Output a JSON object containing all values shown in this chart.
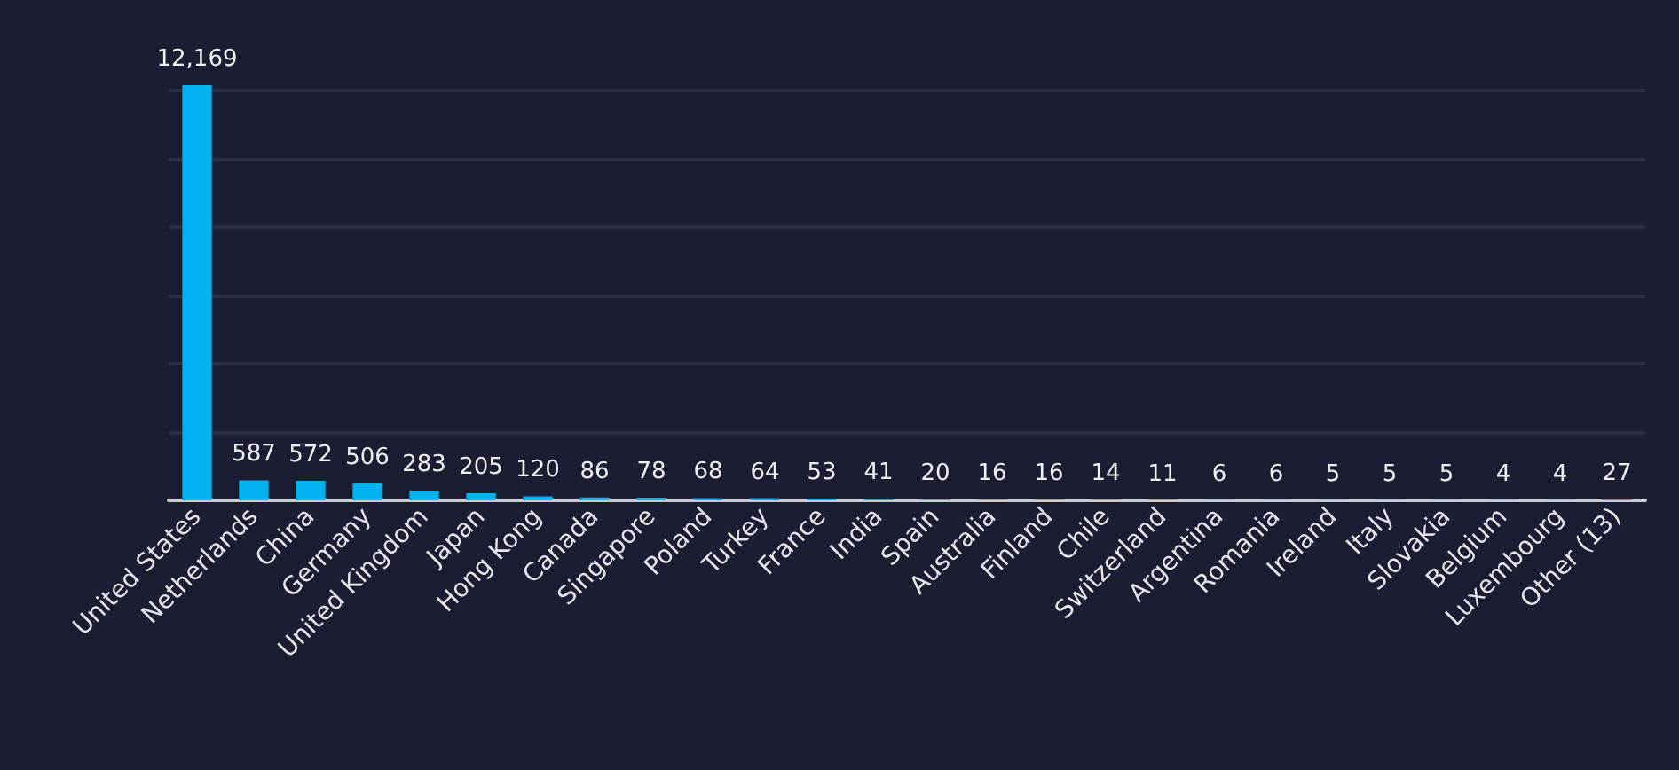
{
  "chart_data": {
    "type": "bar",
    "categories": [
      "United States",
      "Netherlands",
      "China",
      "Germany",
      "United Kingdom",
      "Japan",
      "Hong Kong",
      "Canada",
      "Singapore",
      "Poland",
      "Turkey",
      "France",
      "India",
      "Spain",
      "Australia",
      "Finland",
      "Chile",
      "Switzerland",
      "Argentina",
      "Romania",
      "Ireland",
      "Italy",
      "Slovakia",
      "Belgium",
      "Luxembourg",
      "Other (13)"
    ],
    "values": [
      12169,
      587,
      572,
      506,
      283,
      205,
      120,
      86,
      78,
      68,
      64,
      53,
      41,
      20,
      16,
      16,
      14,
      11,
      6,
      6,
      5,
      5,
      5,
      4,
      4,
      27
    ],
    "value_labels": [
      "12,169",
      "587",
      "572",
      "506",
      "283",
      "205",
      "120",
      "86",
      "78",
      "68",
      "64",
      "53",
      "41",
      "20",
      "16",
      "16",
      "14",
      "11",
      "6",
      "6",
      "5",
      "5",
      "5",
      "4",
      "4",
      "27"
    ],
    "color": "#00b2f0",
    "ylim": [
      0,
      12169
    ],
    "yticks": [
      {
        "value": 0,
        "label": null
      },
      {
        "value": 2000,
        "label": null
      },
      {
        "value": 4000,
        "label": null
      },
      {
        "value": 6000,
        "label": null
      },
      {
        "value": 8000,
        "label": null
      },
      {
        "value": 10000,
        "label": null
      },
      {
        "value": 12000,
        "label": null
      }
    ],
    "tick_labels": "x",
    "grid": "y"
  }
}
